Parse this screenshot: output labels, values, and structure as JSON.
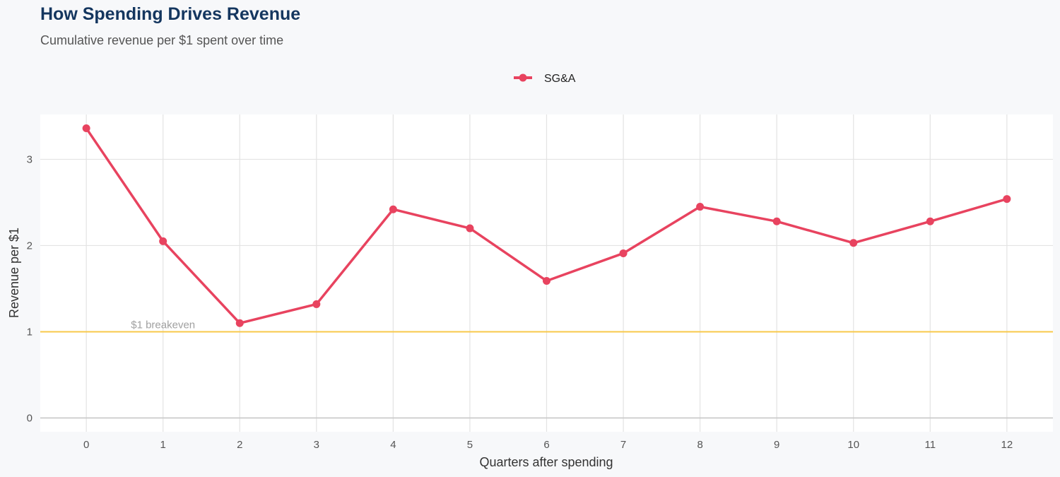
{
  "chart_data": {
    "type": "line",
    "title": "How Spending Drives Revenue",
    "subtitle": "Cumulative revenue per $1 spent over time",
    "xlabel": "Quarters after spending",
    "ylabel": "Revenue per $1",
    "x": [
      0,
      1,
      2,
      3,
      4,
      5,
      6,
      7,
      8,
      9,
      10,
      11,
      12
    ],
    "x_ticks": [
      "0",
      "1",
      "2",
      "3",
      "4",
      "5",
      "6",
      "7",
      "8",
      "9",
      "10",
      "11",
      "12"
    ],
    "y_ticks": [
      "0",
      "1",
      "2",
      "3"
    ],
    "xlim": [
      -0.6,
      12.6
    ],
    "ylim": [
      -0.16,
      3.52
    ],
    "grid": true,
    "legend_position": "top",
    "series": [
      {
        "name": "SG&A",
        "color": "#e8435f",
        "values": [
          3.36,
          2.05,
          1.1,
          1.32,
          2.42,
          2.2,
          1.59,
          1.91,
          2.45,
          2.28,
          2.03,
          2.28,
          2.54
        ]
      }
    ],
    "reference_line": {
      "y": 1,
      "label": "$1 breakeven",
      "color": "#f8c94a"
    }
  }
}
